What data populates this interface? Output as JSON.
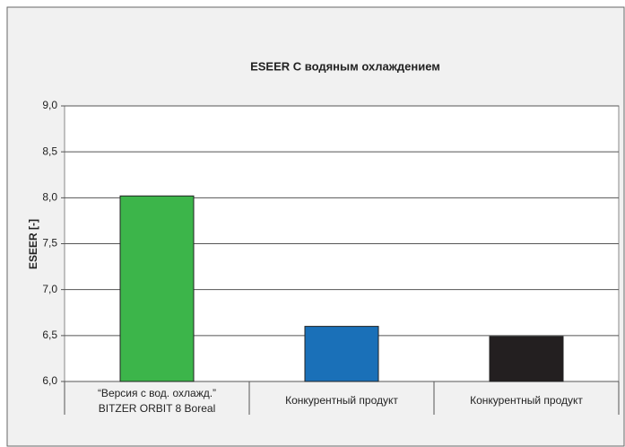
{
  "chart_data": {
    "type": "bar",
    "title": "ESEER С водяным охлаждением",
    "y_label": "ESEER [-]",
    "categories": [
      "“Версия с вод. охлажд.”\nBITZER ORBIT 8 Boreal",
      "Конкурентный продукт",
      "Конкурентный продукт"
    ],
    "values": [
      8.02,
      6.6,
      6.49
    ],
    "colors": [
      "#3cb54a",
      "#1a70b8",
      "#231f20"
    ],
    "ylim": [
      6.0,
      9.0
    ],
    "yticks": [
      {
        "value": 6.0,
        "label": "6,0"
      },
      {
        "value": 6.5,
        "label": "6,5"
      },
      {
        "value": 7.0,
        "label": "7,0"
      },
      {
        "value": 7.5,
        "label": "7,5"
      },
      {
        "value": 8.0,
        "label": "8,0"
      },
      {
        "value": 8.5,
        "label": "8,5"
      },
      {
        "value": 9.0,
        "label": "9,0"
      }
    ],
    "grid": true
  }
}
